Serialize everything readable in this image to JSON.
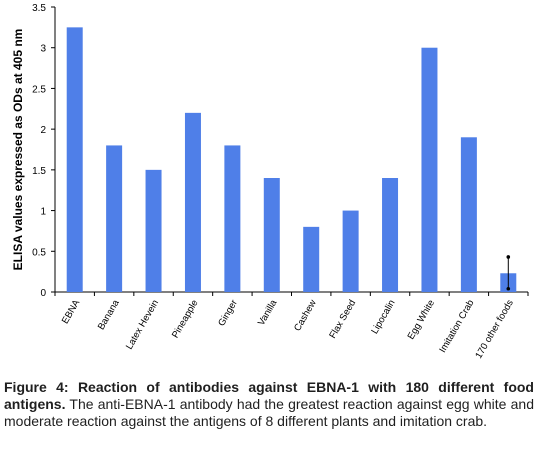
{
  "chart_data": {
    "type": "bar",
    "ylabel": "ELISA values expressed as ODs at 405 nm",
    "xlabel": "",
    "ylim": [
      0,
      3.5
    ],
    "yticks": [
      0,
      0.5,
      1,
      1.5,
      2,
      2.5,
      3,
      3.5
    ],
    "ytick_labels": [
      "0",
      "0.5",
      "1",
      "1.5",
      "2",
      "2.5",
      "3",
      "3.5"
    ],
    "categories": [
      "EBNA",
      "Banana",
      "Latex Hevein",
      "Pineapple",
      "Ginger",
      "Vanilla",
      "Cashew",
      "Flax Seed",
      "Lipocalin",
      "Egg White",
      "Imitation Crab",
      "170 other foods"
    ],
    "values": [
      3.25,
      1.8,
      1.5,
      2.2,
      1.8,
      1.4,
      0.8,
      1.0,
      1.4,
      3.0,
      1.9,
      0.23
    ],
    "error_bar": {
      "category": "170 other foods",
      "low": 0.04,
      "high": 0.43
    },
    "grid": false,
    "bar_color": "#4f7fe8"
  },
  "caption": {
    "bold": "Figure 4: Reaction of antibodies against EBNA-1 with 180 different food antigens.",
    "text": " The anti-EBNA-1 antibody had the greatest reaction against egg white and moderate reaction against the antigens of 8 different plants and imitation crab."
  }
}
